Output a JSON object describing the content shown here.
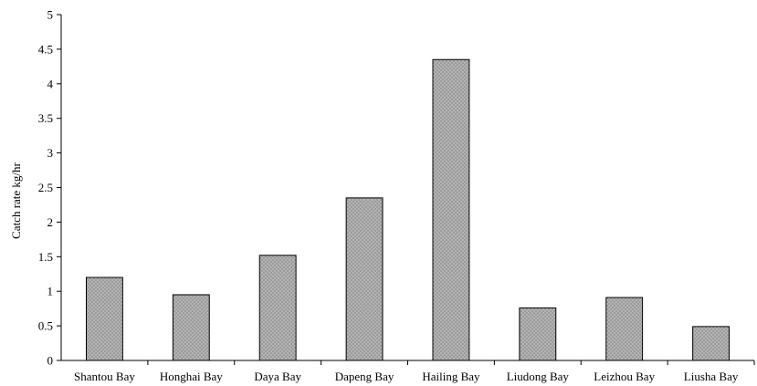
{
  "chart_data": {
    "type": "bar",
    "title": "",
    "xlabel": "",
    "ylabel": "Catch rate kg/hr",
    "ylim": [
      0,
      5
    ],
    "yticks": [
      "0",
      "0.5",
      "1",
      "1.5",
      "2",
      "2.5",
      "3",
      "3.5",
      "4",
      "4.5",
      "5"
    ],
    "grid": false,
    "legend": "none",
    "categories": [
      "Shantou Bay",
      "Honghai Bay",
      "Daya Bay",
      "Dapeng Bay",
      "Hailing Bay",
      "Liudong Bay",
      "Leizhou Bay",
      "Liusha Bay"
    ],
    "values": [
      1.2,
      0.95,
      1.52,
      2.35,
      4.35,
      0.76,
      0.91,
      0.49
    ],
    "bar_color": "#9a9a9a",
    "pattern_dot_color": "#dddddd"
  }
}
